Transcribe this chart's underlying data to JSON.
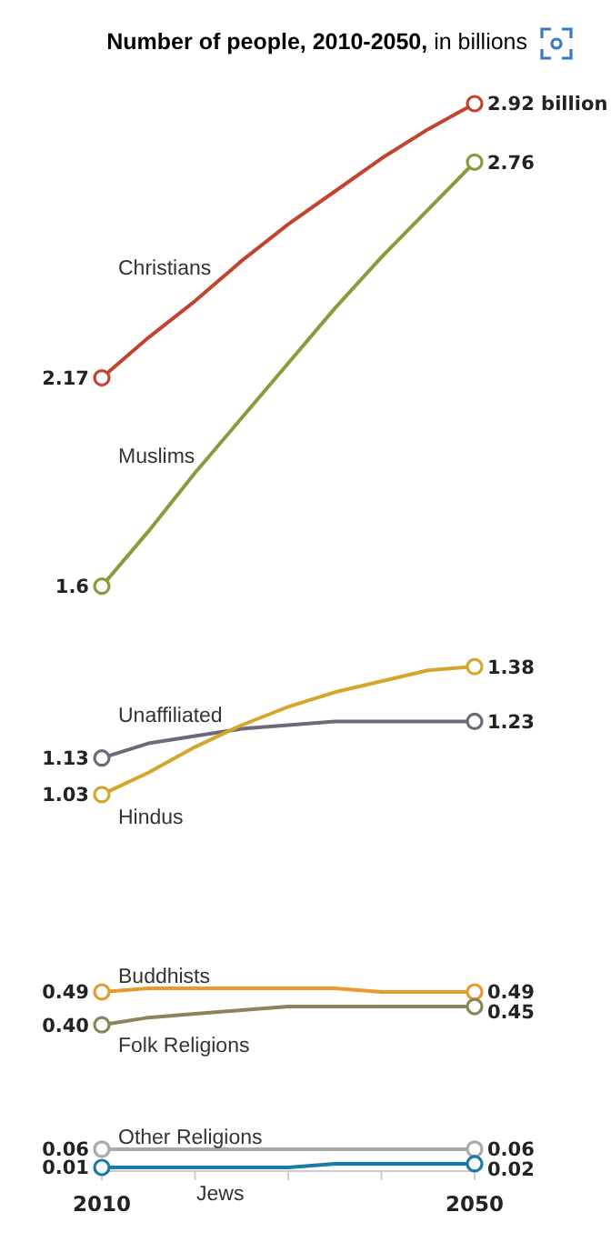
{
  "chart_data": {
    "type": "line",
    "title": "Number of people, 2010-2050,",
    "subtitle": "in billions",
    "x": [
      2010,
      2015,
      2020,
      2025,
      2030,
      2035,
      2040,
      2045,
      2050
    ],
    "xlim": [
      2010,
      2050
    ],
    "xticks": [
      2010,
      {
        "value": 2020,
        "label": null
      },
      {
        "value": 2030,
        "label": null
      },
      {
        "value": 2040,
        "label": null
      },
      2050
    ],
    "tick_labels": "x",
    "line_style": "solid",
    "series": [
      {
        "name": "Christians",
        "color": "#c2432e",
        "values": [
          2.17,
          2.28,
          2.38,
          2.49,
          2.59,
          2.68,
          2.77,
          2.85,
          2.92
        ],
        "value_labels": [
          "2.17",
          null,
          null,
          null,
          null,
          null,
          null,
          null,
          "2.92 billion"
        ]
      },
      {
        "name": "Muslims",
        "color": "#8a9a3c",
        "values": [
          1.6,
          1.75,
          1.91,
          2.06,
          2.21,
          2.36,
          2.5,
          2.63,
          2.76
        ],
        "value_labels": [
          "1.6",
          null,
          null,
          null,
          null,
          null,
          null,
          null,
          "2.76"
        ]
      },
      {
        "name": "Unaffiliated",
        "color": "#6e6878",
        "values": [
          1.13,
          1.17,
          1.19,
          1.21,
          1.22,
          1.23,
          1.23,
          1.23,
          1.23
        ],
        "value_labels": [
          "1.13",
          null,
          null,
          null,
          null,
          null,
          null,
          null,
          "1.23"
        ]
      },
      {
        "name": "Hindus",
        "color": "#d4a72c",
        "values": [
          1.03,
          1.09,
          1.16,
          1.22,
          1.27,
          1.31,
          1.34,
          1.37,
          1.38
        ],
        "value_labels": [
          "1.03",
          null,
          null,
          null,
          null,
          null,
          null,
          null,
          "1.38"
        ]
      },
      {
        "name": "Buddhists",
        "color": "#e89a2c",
        "values": [
          0.49,
          0.5,
          0.5,
          0.5,
          0.5,
          0.5,
          0.49,
          0.49,
          0.49
        ],
        "value_labels": [
          "0.49",
          null,
          null,
          null,
          null,
          null,
          null,
          null,
          "0.49"
        ]
      },
      {
        "name": "Folk Religions",
        "color": "#8c8358",
        "values": [
          0.4,
          0.42,
          0.43,
          0.44,
          0.45,
          0.45,
          0.45,
          0.45,
          0.45
        ],
        "value_labels": [
          "0.40",
          null,
          null,
          null,
          null,
          null,
          null,
          null,
          "0.45"
        ]
      },
      {
        "name": "Other Religions",
        "color": "#aaaaaa",
        "values": [
          0.06,
          0.06,
          0.06,
          0.06,
          0.06,
          0.06,
          0.06,
          0.06,
          0.06
        ],
        "value_labels": [
          "0.06",
          null,
          null,
          null,
          null,
          null,
          null,
          null,
          "0.06"
        ]
      },
      {
        "name": "Jews",
        "color": "#1a7aa6",
        "values": [
          0.01,
          0.01,
          0.01,
          0.01,
          0.01,
          0.02,
          0.02,
          0.02,
          0.02
        ],
        "value_labels": [
          "0.01",
          null,
          null,
          null,
          null,
          null,
          null,
          null,
          "0.02"
        ]
      }
    ]
  }
}
